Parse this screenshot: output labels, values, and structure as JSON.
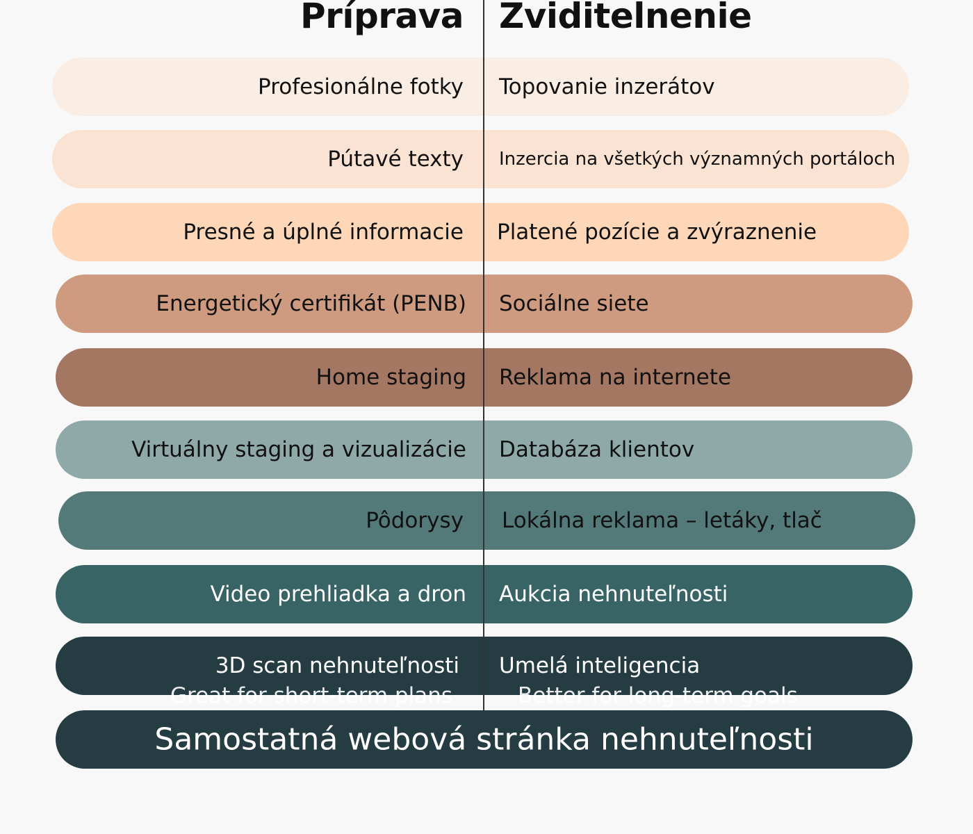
{
  "headers": {
    "left": "Príprava",
    "right": "Zviditelnenie"
  },
  "rows": [
    {
      "left": "Profesionálne fotky",
      "right": "Topovanie inzerátov",
      "color": "#f9ede4",
      "text_color": "#111111"
    },
    {
      "left": "Pútavé texty",
      "right": "Inzercia na všetkých významných portáloch",
      "color": "#fae3d2",
      "text_color": "#111111"
    },
    {
      "left": "Presné a úplné informacie",
      "right": "Platené pozície a zvýraznenie",
      "color": "#fdd7b8",
      "text_color": "#111111"
    },
    {
      "left": "Energetický certifikát (PENB)",
      "right": "Sociálne siete",
      "color": "#cf9b80",
      "text_color": "#111111"
    },
    {
      "left": "Home staging",
      "right": "Reklama na internete",
      "color": "#a47762",
      "text_color": "#111111"
    },
    {
      "left": "Virtuálny staging a vizualizácie",
      "right": "Databáza klientov",
      "color": "#8fa9a9",
      "text_color": "#111111"
    },
    {
      "left": "Pôdorysy",
      "right": "Lokálna reklama – letáky, tlač",
      "color": "#537a79",
      "text_color": "#111111"
    },
    {
      "left": "Video prehliadka a dron",
      "right": "Aukcia nehnuteľnosti",
      "color": "#386465",
      "text_color": "#ffffff"
    },
    {
      "left": "3D scan nehnuteľnosti",
      "right": "Umelá inteligencia",
      "color": "#253d42",
      "text_color": "#ffffff"
    }
  ],
  "footer": {
    "label": "Samostatná webová stránka nehnuteľnosti",
    "color": "#253d42",
    "text_color": "#ffffff"
  },
  "ghost_text": {
    "left": "Great for short-term plans",
    "right": "Better for long-term goals"
  }
}
